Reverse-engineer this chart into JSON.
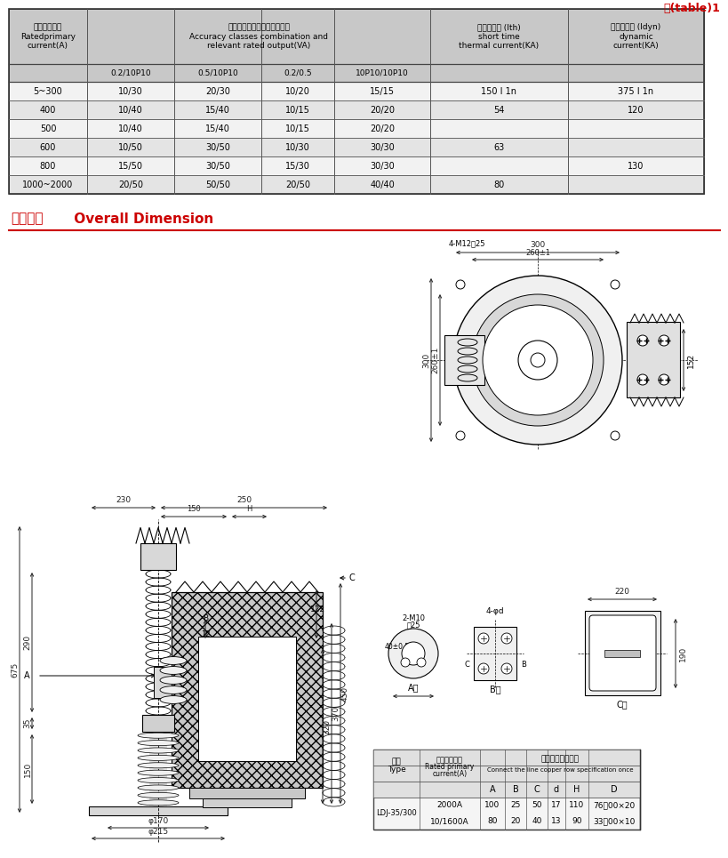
{
  "title_label": "表(table)1",
  "col0_header": "额定一次电流\nRatedprimary\ncurrent(A)",
  "acc_header": "准确级组合及相应的额定输出\nAccuracy classes combination and\nrelevant rated output(VA)",
  "thermal_header": "短时热电流 (Ith)\nshort time\nthermal current(KA)",
  "dynamic_header": "动稳定电流 (Idyn)\ndynamic\ncurrent(KA)",
  "sub_headers": [
    "0.2/10P10",
    "0.5/10P10",
    "0.2/0.5",
    "10P10/10P10"
  ],
  "table_data": [
    [
      "5~300",
      "10/30",
      "20/30",
      "10/20",
      "15/15",
      "150 I 1n",
      "375 I 1n"
    ],
    [
      "400",
      "10/40",
      "15/40",
      "10/15",
      "20/20",
      "54",
      "120"
    ],
    [
      "500",
      "10/40",
      "15/40",
      "10/15",
      "20/20",
      "",
      ""
    ],
    [
      "600",
      "10/50",
      "30/50",
      "10/30",
      "30/30",
      "63",
      ""
    ],
    [
      "800",
      "15/50",
      "30/50",
      "15/30",
      "30/30",
      "",
      "130"
    ],
    [
      "1000~2000",
      "20/50",
      "50/50",
      "20/50",
      "40/40",
      "80",
      ""
    ]
  ],
  "section_title_cn": "外形尺寸",
  "section_title_en": "  Overall Dimension",
  "bg_color": "#ffffff",
  "header_bg": "#c8c8c8",
  "row_bg_odd": "#e4e4e4",
  "row_bg_even": "#f2f2f2",
  "red_color": "#cc0000",
  "dim_color": "#222222",
  "bt_type_cn": "型号",
  "bt_type_en": "Type",
  "bt_rated_cn": "额定一次电流",
  "bt_rated_en": "Rated primary\ncurrent(A)",
  "bt_spec_cn": "一次接线铜排规格",
  "bt_spec_en": "Connect the line copper row specification once",
  "bt_sub": [
    "A",
    "B",
    "C",
    "d",
    "H",
    "D"
  ],
  "bt_data": [
    [
      "LDJ-35/300",
      "2000A",
      "100",
      "25",
      "50",
      "17",
      "110",
      "76或00×20"
    ],
    [
      "",
      "10/1600A",
      "80",
      "20",
      "40",
      "13",
      "90",
      "33或00×10"
    ]
  ]
}
